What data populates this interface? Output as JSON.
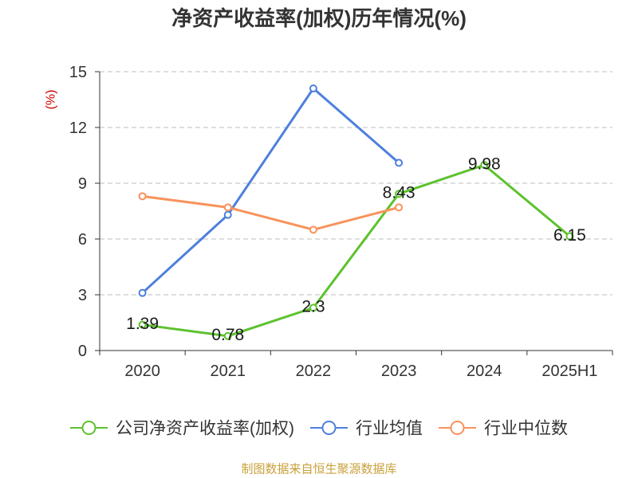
{
  "footer": "制图数据来自恒生聚源数据库",
  "colors": {
    "ylabel": "#d00000",
    "footer": "#c9a13b"
  },
  "chart_data": {
    "type": "line",
    "title": "净资产收益率(加权)历年情况(%)",
    "ylabel": "(%)",
    "categories": [
      "2020",
      "2021",
      "2022",
      "2023",
      "2024",
      "2025H1"
    ],
    "ylim": [
      0,
      15
    ],
    "yticks": [
      0,
      3,
      6,
      9,
      12,
      15
    ],
    "grid": true,
    "legend": "bottom",
    "series": [
      {
        "name": "公司净资产收益率(加权)",
        "color": "#5cc22e",
        "data_labels": true,
        "values": [
          1.39,
          0.78,
          2.3,
          8.43,
          9.98,
          6.15
        ]
      },
      {
        "name": "行业均值",
        "color": "#4e80dc",
        "data_labels": false,
        "values": [
          3.1,
          7.3,
          14.1,
          10.1,
          null,
          null
        ]
      },
      {
        "name": "行业中位数",
        "color": "#f8935c",
        "data_labels": false,
        "values": [
          8.3,
          7.7,
          6.5,
          7.7,
          null,
          null
        ]
      }
    ]
  }
}
